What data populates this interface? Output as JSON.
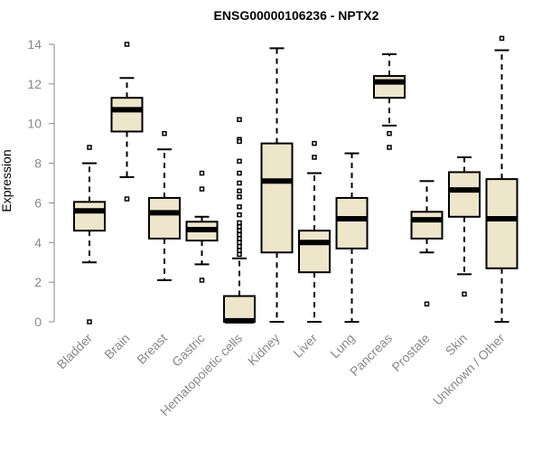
{
  "chart_data": {
    "type": "boxplot",
    "title": "ENSG00000106236 - NPTX2",
    "xlabel": "",
    "ylabel": "Expression",
    "ylim": [
      0,
      14
    ],
    "yticks": [
      "0",
      "2",
      "4",
      "6",
      "8",
      "10",
      "12",
      "14"
    ],
    "categories": [
      "Bladder",
      "Brain",
      "Breast",
      "Gastric",
      "Hematopoietic cells",
      "Kidney",
      "Liver",
      "Lung",
      "Pancreas",
      "Prostate",
      "Skin",
      "Unknown / Other"
    ],
    "boxes": [
      {
        "name": "Bladder",
        "min": 3.0,
        "q1": 4.6,
        "median": 5.6,
        "q3": 6.05,
        "max": 8.0,
        "outliers": [
          8.8,
          0.0
        ]
      },
      {
        "name": "Brain",
        "min": 7.3,
        "q1": 9.6,
        "median": 10.7,
        "q3": 11.3,
        "max": 12.3,
        "outliers": [
          14.0,
          6.2
        ]
      },
      {
        "name": "Breast",
        "min": 2.1,
        "q1": 4.2,
        "median": 5.5,
        "q3": 6.25,
        "max": 8.7,
        "outliers": [
          9.5
        ]
      },
      {
        "name": "Gastric",
        "min": 2.9,
        "q1": 4.1,
        "median": 4.65,
        "q3": 5.05,
        "max": 5.3,
        "outliers": [
          7.5,
          6.7,
          2.1
        ]
      },
      {
        "name": "Hematopoietic cells",
        "min": 0.0,
        "q1": 0.0,
        "median": 0.05,
        "q3": 1.3,
        "max": 3.2,
        "outliers": [
          10.2,
          9.2,
          9.1,
          8.1,
          7.5,
          7.0,
          6.6,
          6.3,
          5.8,
          5.4,
          5.0,
          4.8,
          4.6,
          4.4,
          4.2,
          4.0,
          3.8,
          3.6,
          3.4
        ]
      },
      {
        "name": "Kidney",
        "min": 0.0,
        "q1": 3.5,
        "median": 7.1,
        "q3": 9.0,
        "max": 13.8,
        "outliers": []
      },
      {
        "name": "Liver",
        "min": 0.0,
        "q1": 2.5,
        "median": 4.0,
        "q3": 4.6,
        "max": 7.5,
        "outliers": [
          9.0,
          8.3
        ]
      },
      {
        "name": "Lung",
        "min": 0.0,
        "q1": 3.7,
        "median": 5.2,
        "q3": 6.25,
        "max": 8.5,
        "outliers": []
      },
      {
        "name": "Pancreas",
        "min": 9.9,
        "q1": 11.3,
        "median": 12.1,
        "q3": 12.4,
        "max": 13.5,
        "outliers": [
          9.5,
          8.8
        ]
      },
      {
        "name": "Prostate",
        "min": 3.5,
        "q1": 4.2,
        "median": 5.15,
        "q3": 5.55,
        "max": 7.1,
        "outliers": [
          0.9
        ]
      },
      {
        "name": "Skin",
        "min": 2.4,
        "q1": 5.3,
        "median": 6.65,
        "q3": 7.55,
        "max": 8.3,
        "outliers": [
          1.4
        ]
      },
      {
        "name": "Unknown / Other",
        "min": 0.0,
        "q1": 2.7,
        "median": 5.2,
        "q3": 7.2,
        "max": 13.7,
        "outliers": [
          14.3
        ]
      }
    ],
    "colors": {
      "box_fill": "#ede6cb",
      "box_stroke": "#000000",
      "axis": "#888888",
      "label": "#888888",
      "title": "#000000"
    }
  }
}
